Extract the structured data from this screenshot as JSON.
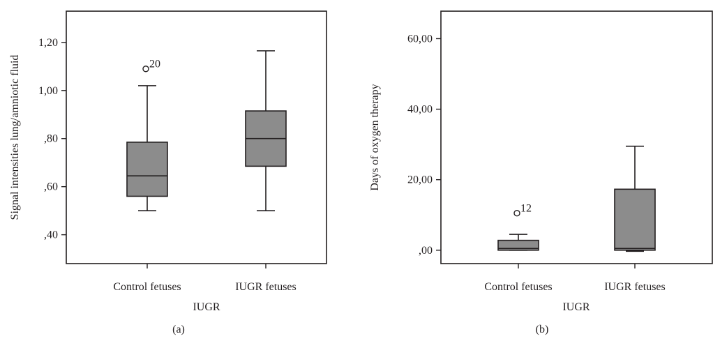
{
  "chart_data": [
    {
      "type": "box",
      "caption": "(a)",
      "xlabel": "IUGR",
      "ylabel": "Signal intensities lung/amniotic fluid",
      "yticks": [
        ",40",
        ",60",
        ",80",
        "1,00",
        "1,20"
      ],
      "ytick_values": [
        0.4,
        0.6,
        0.8,
        1.0,
        1.2
      ],
      "ylim": [
        0.28,
        1.33
      ],
      "categories": [
        "Control fetuses",
        "IUGR fetuses"
      ],
      "boxes": [
        {
          "name": "Control fetuses",
          "min": 0.5,
          "q1": 0.56,
          "median": 0.645,
          "q3": 0.785,
          "max": 1.02,
          "outliers": [
            {
              "value": 1.09,
              "label": "20"
            }
          ]
        },
        {
          "name": "IUGR fetuses",
          "min": 0.5,
          "q1": 0.685,
          "median": 0.8,
          "q3": 0.915,
          "max": 1.165,
          "outliers": []
        }
      ]
    },
    {
      "type": "box",
      "caption": "(b)",
      "xlabel": "IUGR",
      "ylabel": "Days of oxygen therapy",
      "yticks": [
        ",00",
        "20,00",
        "40,00",
        "60,00"
      ],
      "ytick_values": [
        0,
        20,
        40,
        60
      ],
      "ylim": [
        -3.8,
        67.8
      ],
      "categories": [
        "Control fetuses",
        "IUGR fetuses"
      ],
      "boxes": [
        {
          "name": "Control fetuses",
          "min": 0,
          "q1": 0,
          "median": 0.5,
          "q3": 2.8,
          "max": 4.5,
          "outliers": [
            {
              "value": 10.5,
              "label": "12"
            }
          ]
        },
        {
          "name": "IUGR fetuses",
          "min": -0.3,
          "q1": 0,
          "median": 0.5,
          "q3": 17.3,
          "max": 29.5,
          "outliers": []
        }
      ]
    }
  ]
}
